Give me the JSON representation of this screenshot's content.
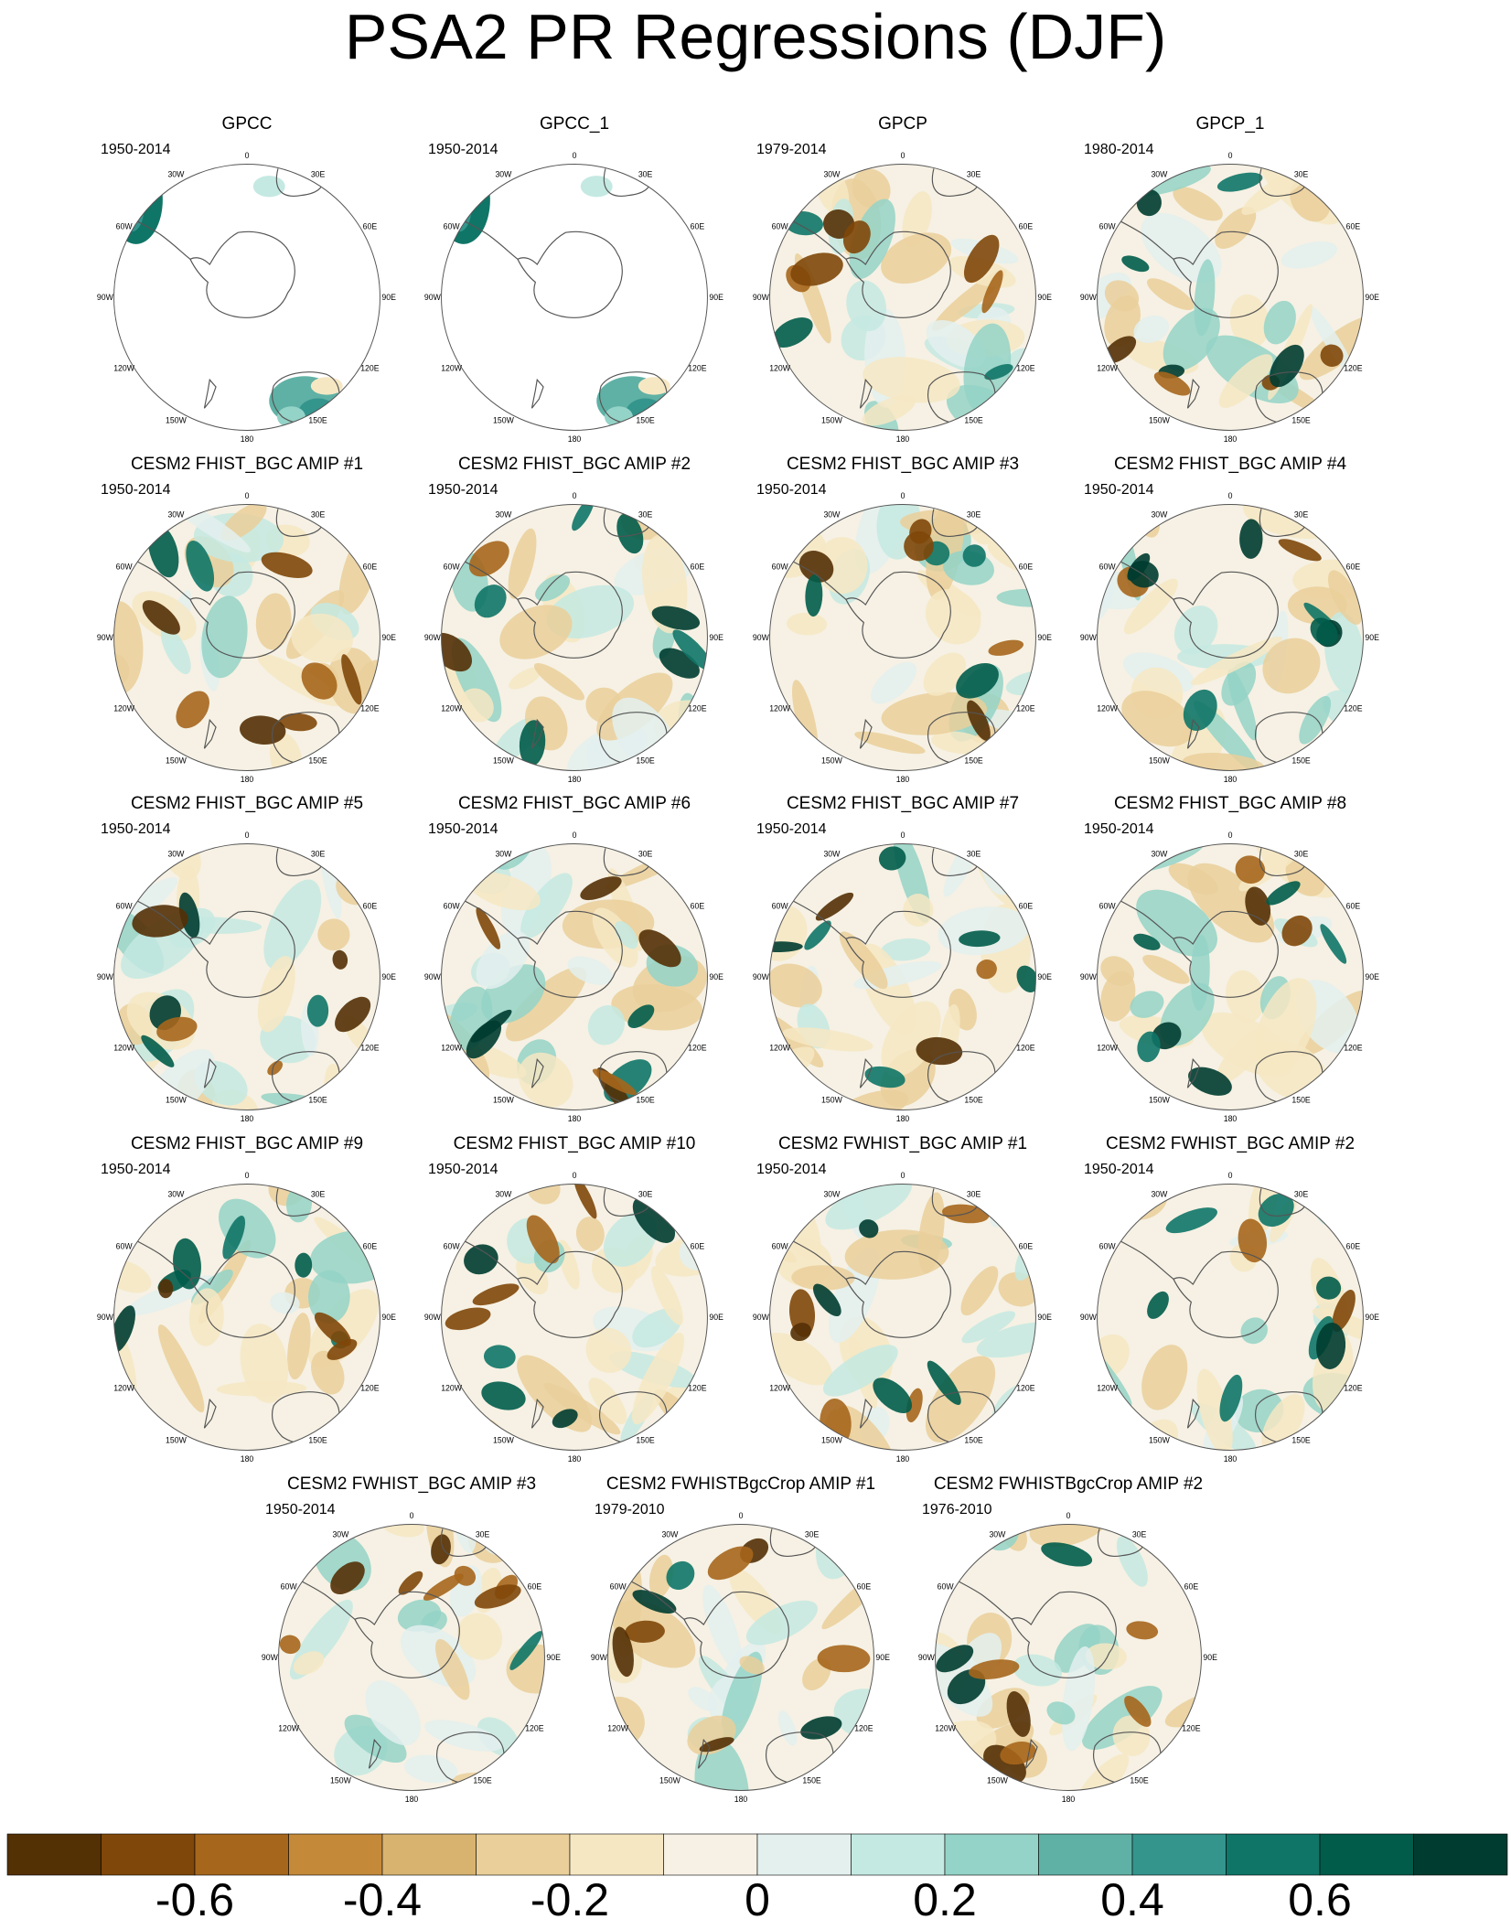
{
  "title": "PSA2 PR Regressions (DJF)",
  "longitude_labels": [
    "0",
    "30E",
    "60E",
    "90E",
    "120E",
    "150E",
    "180",
    "150W",
    "120W",
    "90W",
    "60W",
    "30W"
  ],
  "panels": [
    {
      "title": "GPCC",
      "period": "1950-2014",
      "coverage": "land"
    },
    {
      "title": "GPCC_1",
      "period": "1950-2014",
      "coverage": "land"
    },
    {
      "title": "GPCP",
      "period": "1979-2014",
      "coverage": "full"
    },
    {
      "title": "GPCP_1",
      "period": "1980-2014",
      "coverage": "full"
    },
    {
      "title": "CESM2 FHIST_BGC AMIP #1",
      "period": "1950-2014",
      "coverage": "full"
    },
    {
      "title": "CESM2 FHIST_BGC AMIP #2",
      "period": "1950-2014",
      "coverage": "full"
    },
    {
      "title": "CESM2 FHIST_BGC AMIP #3",
      "period": "1950-2014",
      "coverage": "full"
    },
    {
      "title": "CESM2 FHIST_BGC AMIP #4",
      "period": "1950-2014",
      "coverage": "full"
    },
    {
      "title": "CESM2 FHIST_BGC AMIP #5",
      "period": "1950-2014",
      "coverage": "full"
    },
    {
      "title": "CESM2 FHIST_BGC AMIP #6",
      "period": "1950-2014",
      "coverage": "full"
    },
    {
      "title": "CESM2 FHIST_BGC AMIP #7",
      "period": "1950-2014",
      "coverage": "full"
    },
    {
      "title": "CESM2 FHIST_BGC AMIP #8",
      "period": "1950-2014",
      "coverage": "full"
    },
    {
      "title": "CESM2 FHIST_BGC AMIP #9",
      "period": "1950-2014",
      "coverage": "full"
    },
    {
      "title": "CESM2 FHIST_BGC AMIP #10",
      "period": "1950-2014",
      "coverage": "full"
    },
    {
      "title": "CESM2 FWHIST_BGC AMIP #1",
      "period": "1950-2014",
      "coverage": "full"
    },
    {
      "title": "CESM2 FWHIST_BGC AMIP #2",
      "period": "1950-2014",
      "coverage": "full"
    },
    {
      "title": "CESM2 FWHIST_BGC AMIP #3",
      "period": "1950-2014",
      "coverage": "full"
    },
    {
      "title": "CESM2 FWHISTBgcCrop AMIP #1",
      "period": "1979-2010",
      "coverage": "full"
    },
    {
      "title": "CESM2 FWHISTBgcCrop AMIP #2",
      "period": "1976-2010",
      "coverage": "full"
    }
  ],
  "colorbar": {
    "labels": [
      "-0.6",
      "-0.4",
      "-0.2",
      "0",
      "0.2",
      "0.4",
      "0.6"
    ],
    "colors": [
      "#543005",
      "#7f4709",
      "#a6661c",
      "#c48a3a",
      "#d8b370",
      "#eacf9a",
      "#f6e7c3",
      "#f6f1e4",
      "#e3f0ee",
      "#c4e9e2",
      "#94d3c7",
      "#5fb1a5",
      "#34958d",
      "#0f7567",
      "#015c4a",
      "#003c30"
    ]
  }
}
